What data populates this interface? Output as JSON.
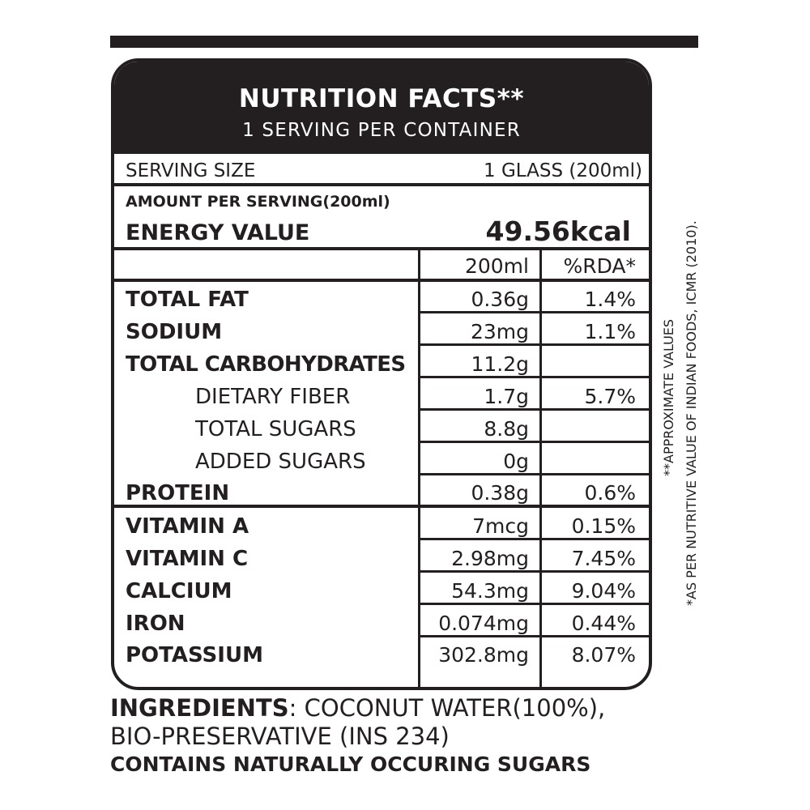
{
  "header": {
    "title": "NUTRITION FACTS**",
    "servings": "1 SERVING PER CONTAINER"
  },
  "serving": {
    "label": "SERVING SIZE",
    "value": "1 GLASS (200ml)"
  },
  "amount_label": "AMOUNT PER SERVING(200ml)",
  "energy": {
    "label": "ENERGY VALUE",
    "value": "49.56kcal"
  },
  "columns": {
    "amount": "200ml",
    "rda": "%RDA*"
  },
  "nutrients": [
    {
      "name": "TOTAL FAT",
      "amount": "0.36g",
      "rda": "1.4%"
    },
    {
      "name": "SODIUM",
      "amount": "23mg",
      "rda": "1.1%"
    },
    {
      "name": "TOTAL CARBOHYDRATES",
      "amount": "11.2g",
      "rda": ""
    },
    {
      "name": "DIETARY FIBER",
      "amount": "1.7g",
      "rda": "5.7%"
    },
    {
      "name": "TOTAL SUGARS",
      "amount": "8.8g",
      "rda": ""
    },
    {
      "name": "ADDED SUGARS",
      "amount": "0g",
      "rda": ""
    },
    {
      "name": "PROTEIN",
      "amount": "0.38g",
      "rda": "0.6%"
    },
    {
      "name": "VITAMIN A",
      "amount": "7mcg",
      "rda": "0.15%"
    },
    {
      "name": "VITAMIN C",
      "amount": "2.98mg",
      "rda": "7.45%"
    },
    {
      "name": "CALCIUM",
      "amount": "54.3mg",
      "rda": "9.04%"
    },
    {
      "name": "IRON",
      "amount": "0.074mg",
      "rda": "0.44%"
    },
    {
      "name": "POTASSIUM",
      "amount": "302.8mg",
      "rda": "8.07%"
    }
  ],
  "side_notes": {
    "approx": "**APPROXIMATE VALUES",
    "source": "*AS PER NUTRITIVE VALUE OF INDIAN FOODS, ICMR (2010)."
  },
  "ingredients": {
    "label": "INGREDIENTS",
    "text": ": COCONUT WATER(100%),",
    "line2": "BIO-PRESERVATIVE (INS 234)",
    "line3": "CONTAINS NATURALLY OCCURING SUGARS"
  }
}
